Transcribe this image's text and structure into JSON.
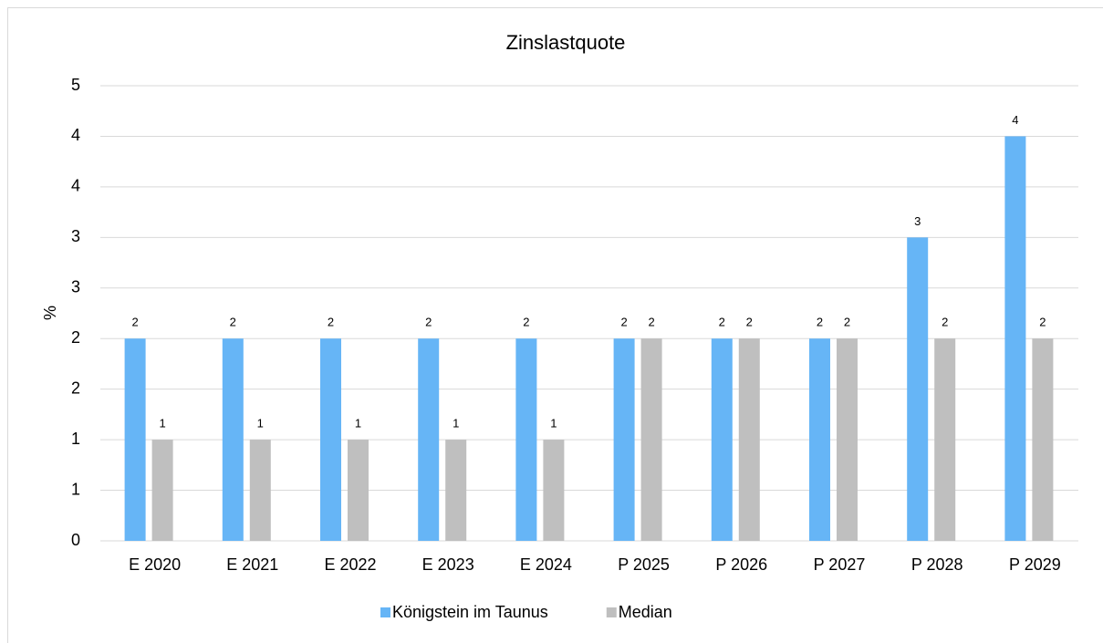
{
  "chart_data": {
    "type": "bar",
    "title": "Zinslastquote",
    "y_label": "%",
    "categories": [
      "E 2020",
      "E 2021",
      "E 2022",
      "E 2023",
      "E 2024",
      "P 2025",
      "P 2026",
      "P 2027",
      "P 2028",
      "P 2029"
    ],
    "series": [
      {
        "name": "Königstein im Taunus",
        "color": "#66b5f6",
        "values": [
          2,
          2,
          2,
          2,
          2,
          2,
          2,
          2,
          3,
          4
        ]
      },
      {
        "name": "Median",
        "color": "#bfbfbf",
        "values": [
          1,
          1,
          1,
          1,
          1,
          2,
          2,
          2,
          2,
          2
        ]
      }
    ],
    "ylim": [
      0,
      4.5
    ],
    "yticks": [
      0,
      {
        "value": 0.5,
        "label": "1"
      },
      1,
      {
        "value": 1.5,
        "label": "2"
      },
      2,
      {
        "value": 2.5,
        "label": "3"
      },
      3,
      {
        "value": 3.5,
        "label": "4"
      },
      4,
      {
        "value": 4.5,
        "label": "5"
      }
    ],
    "grid": true,
    "legend": "bottom"
  }
}
